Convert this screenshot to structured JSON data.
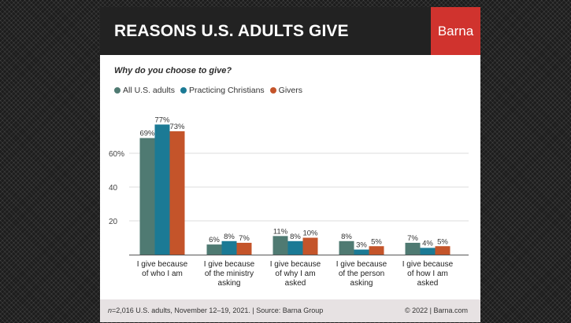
{
  "header": {
    "title": "REASONS U.S. ADULTS GIVE",
    "brand": "Barna"
  },
  "question": "Why do you choose to give?",
  "footer": {
    "source_n": "n",
    "source_rest": "=2,016 U.S. adults, November 12–19, 2021. | Source: Barna Group",
    "copyright": "© 2022 |  Barna.com"
  },
  "chart_data": {
    "type": "bar",
    "categories": [
      [
        "I give because",
        "of who I am"
      ],
      [
        "I give because",
        "of the ministry",
        "asking"
      ],
      [
        "I give because",
        "of why I am",
        "asked"
      ],
      [
        "I give because",
        "of the person",
        "asking"
      ],
      [
        "I give because",
        "of how I am",
        "asked"
      ]
    ],
    "series": [
      {
        "name": "All U.S. adults",
        "color": "#4f7a72",
        "values": [
          69,
          6,
          11,
          8,
          7
        ]
      },
      {
        "name": "Practicing Christians",
        "color": "#1b7a95",
        "values": [
          77,
          8,
          8,
          3,
          4
        ]
      },
      {
        "name": "Givers",
        "color": "#c4542a",
        "values": [
          73,
          7,
          10,
          5,
          5
        ]
      }
    ],
    "value_suffix": "%",
    "yticks": [
      {
        "value": 20,
        "label": "20"
      },
      {
        "value": 40,
        "label": "40"
      },
      {
        "value": 60,
        "label": "60%"
      }
    ],
    "ylim": [
      0,
      80
    ],
    "grid": true,
    "legend_position": "top-left"
  }
}
